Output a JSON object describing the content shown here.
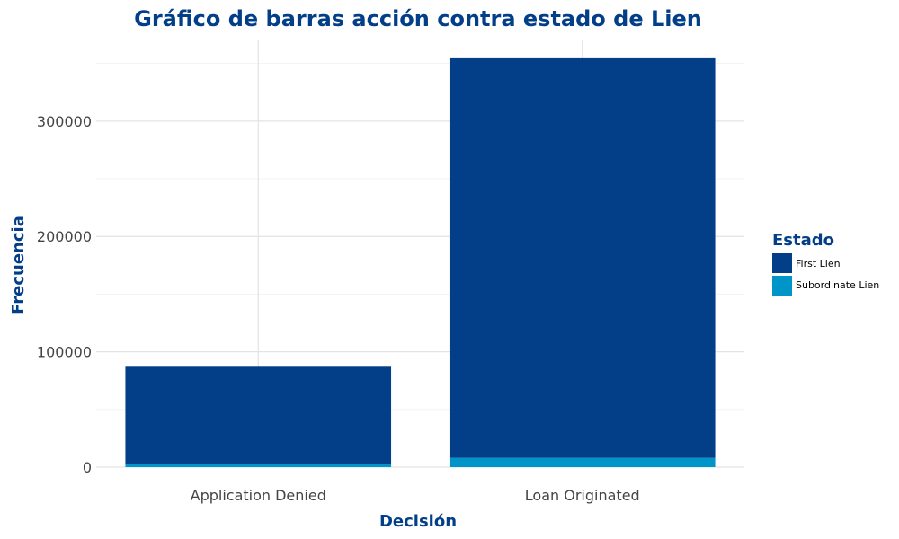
{
  "chart_data": {
    "type": "bar",
    "stacked": true,
    "title": "Gráfico de barras acción contra estado de Lien",
    "xlabel": "Decisión",
    "ylabel": "Frecuencia",
    "categories": [
      "Application Denied",
      "Loan Originated"
    ],
    "series": [
      {
        "name": "First Lien",
        "values": [
          85000,
          346500
        ]
      },
      {
        "name": "Subordinate Lien",
        "values": [
          2800,
          8000
        ]
      }
    ],
    "yticks": [
      0,
      100000,
      200000,
      300000
    ],
    "ytick_labels": [
      "0",
      "100000",
      "200000",
      "300000"
    ],
    "ylim": [
      0,
      370000
    ],
    "grid": true,
    "legend": {
      "title": "Estado",
      "position": "right"
    }
  },
  "colors": {
    "title": "#033f88",
    "first_lien": "#033f88",
    "subordinate_lien": "#0095c9"
  }
}
